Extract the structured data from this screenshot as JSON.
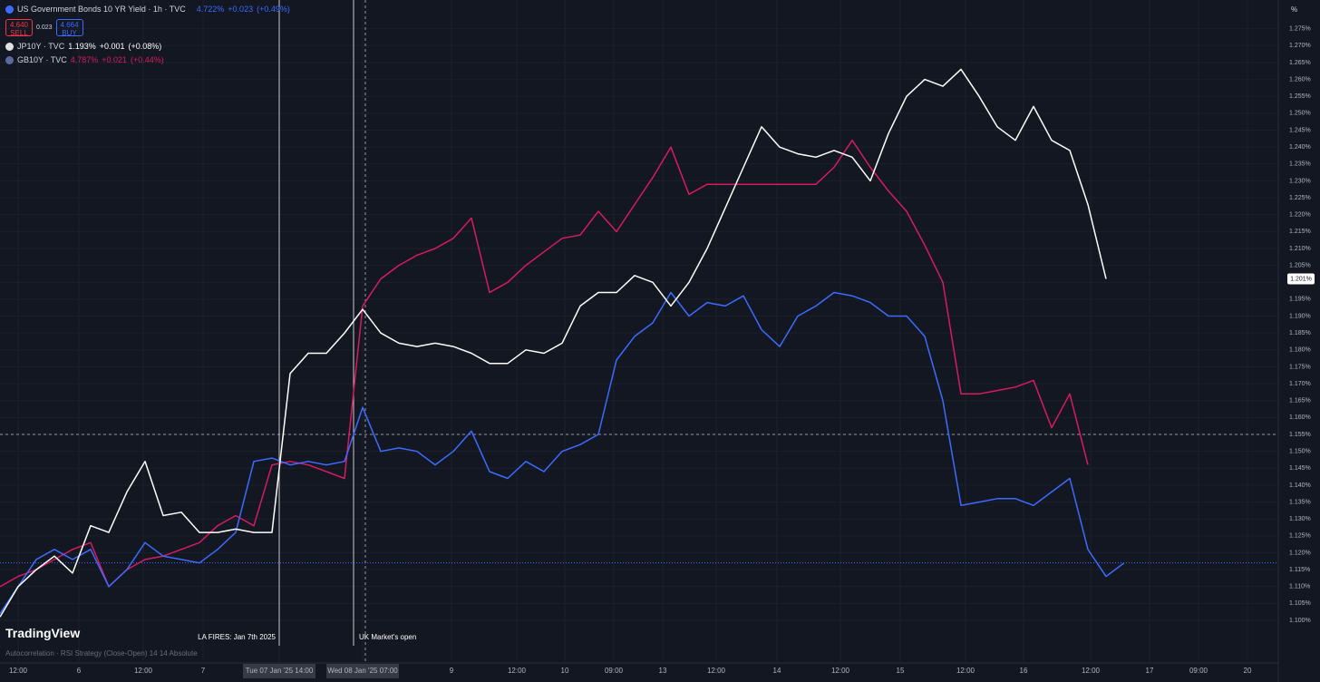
{
  "header": {
    "sell_price": "4.640",
    "sell": "SELL",
    "spread": "0.023",
    "buy_price": "4.664",
    "buy": "BUY",
    "quotes": [
      {
        "last": "4.722%",
        "change": "+0.023",
        "pct": "(+0.49%)"
      },
      {
        "last": "1.193%",
        "change": "+0.001",
        "pct": "(+0.08%)"
      },
      {
        "last": "4.787%",
        "change": "+0.021",
        "pct": "(+0.44%)"
      }
    ],
    "brand": "TradingView",
    "indicator": "Autocorrelation · RSI Strategy (Close-Open) 14 14 Absolute",
    "unit": "%"
  },
  "chart_data": {
    "type": "line",
    "x": [
      0,
      1,
      2,
      3,
      4,
      5,
      6,
      7,
      8,
      9,
      10,
      11,
      12,
      13,
      14,
      15,
      16,
      17,
      18,
      19,
      20,
      21,
      22,
      23,
      24,
      25,
      26,
      27,
      28,
      29,
      30,
      31,
      32,
      33,
      34,
      35,
      36,
      37,
      38,
      39,
      40,
      41,
      42,
      43,
      44,
      45,
      46,
      47,
      48,
      49,
      50,
      51,
      52,
      53,
      54,
      55,
      56,
      57,
      58,
      59,
      60,
      61,
      62
    ],
    "series": [
      {
        "name": "US Government Bonds 10 YR Yield · 1h · TVC",
        "color": "#3d6bff",
        "values": [
          1.102,
          1.11,
          1.118,
          1.121,
          1.118,
          1.121,
          1.11,
          1.115,
          1.123,
          1.119,
          1.118,
          1.117,
          1.121,
          1.126,
          1.147,
          1.148,
          1.146,
          1.147,
          1.146,
          1.147,
          1.163,
          1.15,
          1.151,
          1.15,
          1.146,
          1.15,
          1.156,
          1.144,
          1.142,
          1.147,
          1.144,
          1.15,
          1.152,
          1.155,
          1.177,
          1.184,
          1.188,
          1.197,
          1.19,
          1.194,
          1.193,
          1.196,
          1.186,
          1.181,
          1.19,
          1.193,
          1.197,
          1.196,
          1.194,
          1.19,
          1.19,
          1.184,
          1.165,
          1.134,
          1.135,
          1.136,
          1.136,
          1.134,
          1.138,
          1.142,
          1.121,
          1.113,
          1.117
        ]
      },
      {
        "name": "JP10Y · TVC",
        "color": "#ffffff",
        "values": [
          1.101,
          1.11,
          1.115,
          1.119,
          1.114,
          1.128,
          1.126,
          1.138,
          1.147,
          1.131,
          1.132,
          1.126,
          1.126,
          1.127,
          1.126,
          1.126,
          1.173,
          1.179,
          1.179,
          1.185,
          1.192,
          1.185,
          1.182,
          1.181,
          1.182,
          1.181,
          1.179,
          1.176,
          1.176,
          1.18,
          1.179,
          1.182,
          1.193,
          1.197,
          1.197,
          1.202,
          1.2,
          1.193,
          1.2,
          1.21,
          1.222,
          1.234,
          1.246,
          1.24,
          1.238,
          1.237,
          1.239,
          1.237,
          1.23,
          1.244,
          1.255,
          1.26,
          1.258,
          1.263,
          1.255,
          1.246,
          1.242,
          1.252,
          1.242,
          1.239,
          1.223,
          1.201,
          null
        ]
      },
      {
        "name": "GB10Y · TVC",
        "color": "#d81b60",
        "values": [
          1.11,
          1.113,
          1.115,
          1.118,
          1.121,
          1.123,
          1.11,
          1.115,
          1.118,
          1.119,
          1.121,
          1.123,
          1.128,
          1.131,
          1.128,
          1.146,
          1.147,
          1.146,
          1.144,
          1.142,
          1.193,
          1.201,
          1.205,
          1.208,
          1.21,
          1.213,
          1.219,
          1.197,
          1.2,
          1.205,
          1.209,
          1.213,
          1.214,
          1.221,
          1.215,
          1.223,
          1.231,
          1.24,
          1.226,
          1.229,
          1.229,
          1.229,
          1.229,
          1.229,
          1.229,
          1.229,
          1.234,
          1.242,
          1.234,
          1.227,
          1.221,
          1.211,
          1.2,
          1.167,
          1.167,
          1.168,
          1.169,
          1.171,
          1.157,
          1.167,
          1.146,
          null,
          null
        ]
      }
    ],
    "xlim": [
      0,
      70.5
    ],
    "xticks": [
      {
        "value": 1,
        "label": "12:00"
      },
      {
        "value": 4.35,
        "label": "6"
      },
      {
        "value": 7.9,
        "label": "12:00"
      },
      {
        "value": 11.2,
        "label": "7"
      },
      {
        "value": 15.4,
        "label": "Tue 07 Jan '25   14:00"
      },
      {
        "value": 20,
        "label": "Wed 08 Jan '25   07:00"
      },
      {
        "value": 24.9,
        "label": "9"
      },
      {
        "value": 28.5,
        "label": "12:00"
      },
      {
        "value": 31.15,
        "label": "10"
      },
      {
        "value": 33.85,
        "label": "09:00"
      },
      {
        "value": 36.55,
        "label": "13"
      },
      {
        "value": 39.5,
        "label": "12:00"
      },
      {
        "value": 42.85,
        "label": "14"
      },
      {
        "value": 46.35,
        "label": "12:00"
      },
      {
        "value": 49.65,
        "label": "15"
      },
      {
        "value": 53.25,
        "label": "12:00"
      },
      {
        "value": 56.45,
        "label": "16"
      },
      {
        "value": 60.15,
        "label": "12:00"
      },
      {
        "value": 63.4,
        "label": "17"
      },
      {
        "value": 66.1,
        "label": "09:00"
      },
      {
        "value": 68.8,
        "label": "20"
      }
    ],
    "ylim": [
      1.0925,
      1.2835
    ],
    "yticks": [
      {
        "value": 1.1,
        "label": "1.100%"
      },
      {
        "value": 1.105,
        "label": "1.105%"
      },
      {
        "value": 1.11,
        "label": "1.110%"
      },
      {
        "value": 1.115,
        "label": "1.115%"
      },
      {
        "value": 1.12,
        "label": "1.120%"
      },
      {
        "value": 1.125,
        "label": "1.125%"
      },
      {
        "value": 1.13,
        "label": "1.130%"
      },
      {
        "value": 1.135,
        "label": "1.135%"
      },
      {
        "value": 1.14,
        "label": "1.140%"
      },
      {
        "value": 1.145,
        "label": "1.145%"
      },
      {
        "value": 1.15,
        "label": "1.150%"
      },
      {
        "value": 1.155,
        "label": "1.155%"
      },
      {
        "value": 1.16,
        "label": "1.160%"
      },
      {
        "value": 1.165,
        "label": "1.165%"
      },
      {
        "value": 1.17,
        "label": "1.170%"
      },
      {
        "value": 1.175,
        "label": "1.175%"
      },
      {
        "value": 1.18,
        "label": "1.180%"
      },
      {
        "value": 1.185,
        "label": "1.185%"
      },
      {
        "value": 1.19,
        "label": "1.190%"
      },
      {
        "value": 1.195,
        "label": "1.195%"
      },
      {
        "value": 1.2,
        "label": "1.200%"
      },
      {
        "value": 1.205,
        "label": "1.205%"
      },
      {
        "value": 1.21,
        "label": "1.210%"
      },
      {
        "value": 1.215,
        "label": "1.215%"
      },
      {
        "value": 1.22,
        "label": "1.220%"
      },
      {
        "value": 1.225,
        "label": "1.225%"
      },
      {
        "value": 1.23,
        "label": "1.230%"
      },
      {
        "value": 1.235,
        "label": "1.235%"
      },
      {
        "value": 1.24,
        "label": "1.240%"
      },
      {
        "value": 1.245,
        "label": "1.245%"
      },
      {
        "value": 1.25,
        "label": "1.250%"
      },
      {
        "value": 1.255,
        "label": "1.255%"
      },
      {
        "value": 1.26,
        "label": "1.260%"
      },
      {
        "value": 1.265,
        "label": "1.265%"
      },
      {
        "value": 1.27,
        "label": "1.270%"
      },
      {
        "value": 1.275,
        "label": "1.275%"
      }
    ],
    "grid": true,
    "annotations": [
      {
        "text": "LA FIRES: Jan 7th 2025",
        "x": 15.4
      },
      {
        "text": "UK Market's open",
        "x": 19.5
      }
    ],
    "last_price": {
      "value": 1.201,
      "label": "1.201%"
    },
    "crosshair": {
      "x": 20.15,
      "y": 1.155
    },
    "reference_line": 1.117
  }
}
